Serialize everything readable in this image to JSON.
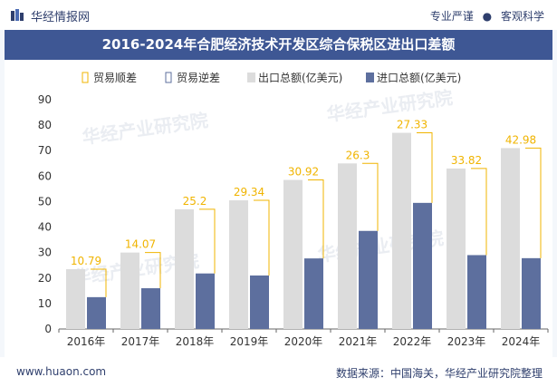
{
  "header": {
    "logo_text": "华经情报网",
    "tagline_left": "专业严谨",
    "tagline_sep": "●",
    "tagline_right": "客观科学"
  },
  "watermark": "华经产业研究院",
  "footer": {
    "url": "www.huaon.com",
    "source": "数据来源：中国海关，华经产业研究院整理"
  },
  "colors": {
    "export": "#dcdcdc",
    "import": "#5d6f9e",
    "surplus": "#f0b400",
    "title_bg": "#3e5794",
    "brand": "#2f3f6d"
  },
  "chart_data": {
    "type": "bar",
    "title": "2016-2024年合肥经济技术开发区综合保税区进出口差额",
    "categories": [
      "2016年",
      "2017年",
      "2018年",
      "2019年",
      "2020年",
      "2021年",
      "2022年",
      "2023年",
      "2024年"
    ],
    "legend": [
      "贸易顺差",
      "贸易逆差",
      "出口总额(亿美元)",
      "进口总额(亿美元)"
    ],
    "legend_position": "top",
    "ylim": [
      0,
      90
    ],
    "yticks": [
      0,
      10,
      20,
      30,
      40,
      50,
      60,
      70,
      80,
      90
    ],
    "grid": false,
    "series": [
      {
        "name": "出口总额(亿美元)",
        "values": [
          23.5,
          30.0,
          47.0,
          50.5,
          58.5,
          65.0,
          77.0,
          63.0,
          71.0
        ]
      },
      {
        "name": "进口总额(亿美元)",
        "values": [
          12.5,
          16.0,
          21.8,
          21.0,
          27.7,
          38.5,
          49.5,
          29.0,
          27.8
        ]
      },
      {
        "name": "贸易顺差",
        "values": [
          10.79,
          14.07,
          25.2,
          29.34,
          30.92,
          26.3,
          27.33,
          33.82,
          42.98
        ]
      }
    ]
  }
}
